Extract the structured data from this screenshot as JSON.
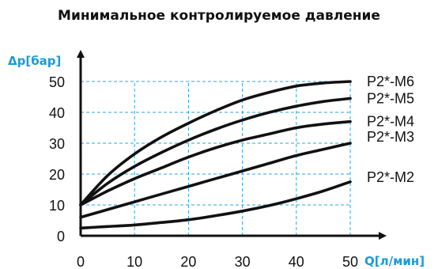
{
  "chart_data": {
    "type": "line",
    "title": "Минимальное контролируемое давление",
    "xlabel": "Q[л/мин]",
    "ylabel": "Δp[бар]",
    "xlim": [
      0,
      50
    ],
    "ylim": [
      0,
      50
    ],
    "x_ticks": [
      "0",
      "10",
      "20",
      "30",
      "40",
      "50"
    ],
    "y_ticks": [
      "0",
      "10",
      "20",
      "30",
      "40",
      "50"
    ],
    "grid": true,
    "series": [
      {
        "name": "P2*-M6",
        "x": [
          0,
          5,
          10,
          15,
          20,
          25,
          30,
          35,
          40,
          45,
          50
        ],
        "y": [
          10,
          19.5,
          26.5,
          32,
          36.5,
          40.5,
          44,
          46.5,
          48.5,
          49.5,
          50
        ]
      },
      {
        "name": "P2*-M5",
        "x": [
          0,
          5,
          10,
          15,
          20,
          25,
          30,
          35,
          40,
          45,
          50
        ],
        "y": [
          10,
          17,
          22.5,
          27,
          31,
          34.5,
          37.5,
          40,
          42,
          43.5,
          44.5
        ]
      },
      {
        "name": "P2*-M4",
        "x": [
          0,
          5,
          10,
          15,
          20,
          25,
          30,
          35,
          40,
          45,
          50
        ],
        "y": [
          10,
          14.5,
          18.5,
          22,
          25.5,
          28.5,
          31,
          33,
          35,
          36.2,
          37
        ]
      },
      {
        "name": "P2*-M3",
        "x": [
          0,
          5,
          10,
          15,
          20,
          25,
          30,
          35,
          40,
          45,
          50
        ],
        "y": [
          6,
          8.5,
          11,
          13.5,
          16,
          18.5,
          21,
          23.5,
          26,
          28,
          30
        ]
      },
      {
        "name": "P2*-M2",
        "x": [
          0,
          5,
          10,
          15,
          20,
          25,
          30,
          35,
          40,
          45,
          50
        ],
        "y": [
          2.5,
          3,
          3.5,
          4.3,
          5.2,
          6.5,
          8,
          9.8,
          12,
          14.5,
          17.5
        ]
      }
    ],
    "series_label_y": [
      50,
      44.5,
      37,
      32,
      19
    ]
  }
}
